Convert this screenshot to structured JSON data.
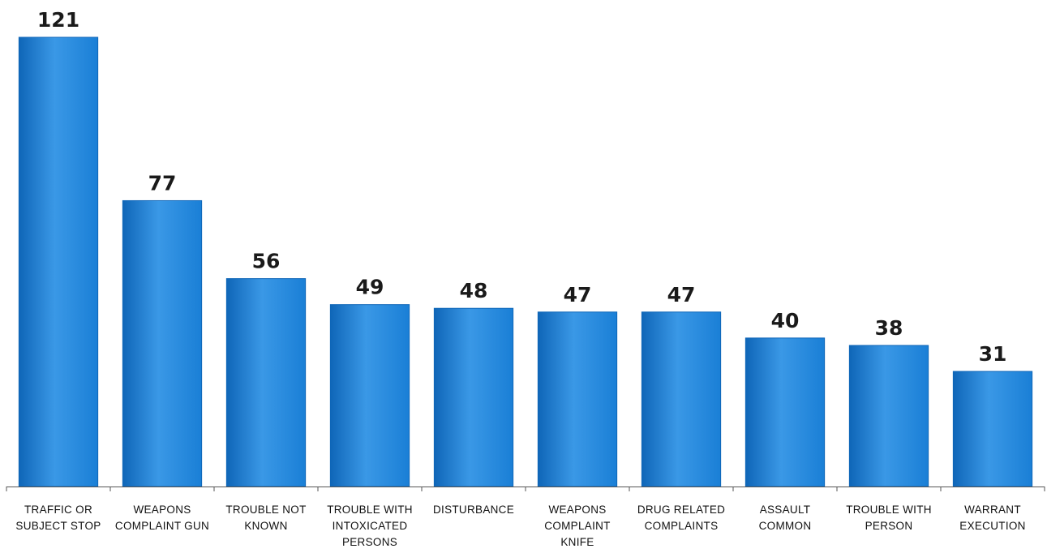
{
  "chart_data": {
    "type": "bar",
    "categories": [
      [
        "TRAFFIC OR",
        "SUBJECT STOP"
      ],
      [
        "WEAPONS",
        "COMPLAINT GUN"
      ],
      [
        "TROUBLE NOT",
        "KNOWN"
      ],
      [
        "TROUBLE WITH",
        "INTOXICATED",
        "PERSONS"
      ],
      [
        "DISTURBANCE"
      ],
      [
        "WEAPONS",
        "COMPLAINT",
        "KNIFE"
      ],
      [
        "DRUG RELATED",
        "COMPLAINTS"
      ],
      [
        "ASSAULT",
        "COMMON"
      ],
      [
        "TROUBLE WITH",
        "PERSON"
      ],
      [
        "WARRANT",
        "EXECUTION"
      ]
    ],
    "values": [
      121,
      77,
      56,
      49,
      48,
      47,
      47,
      40,
      38,
      31
    ],
    "value_labels": [
      "121",
      "77",
      "56",
      "49",
      "48",
      "47",
      "47",
      "40",
      "38",
      "31"
    ],
    "title": "",
    "xlabel": "",
    "ylabel": "",
    "ylim": [
      0,
      121
    ],
    "grid": false,
    "legend": "none",
    "bar_color": "#1a7fd6",
    "bar_color_dark": "#0f66b8",
    "bar_color_light": "#3a98e6"
  }
}
